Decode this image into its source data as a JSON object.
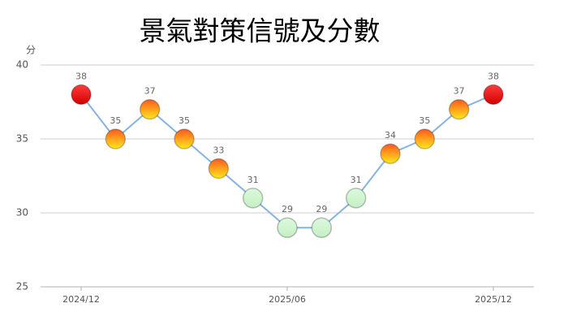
{
  "chart_data": {
    "type": "line",
    "title": "景氣對策信號及分數",
    "y_label": "分",
    "categories": [
      "2024/12",
      null,
      null,
      null,
      null,
      null,
      "2025/06",
      null,
      null,
      null,
      null,
      null,
      "2025/12"
    ],
    "values": [
      38,
      35,
      37,
      35,
      33,
      31,
      29,
      29,
      31,
      34,
      35,
      37,
      38
    ],
    "color": "#86b4e2",
    "marker_colors": [
      [
        "#ff3b3b",
        "#d40000"
      ],
      [
        "#ff5a1e",
        "#ffe81a"
      ],
      [
        "#ff5a1e",
        "#ffe81a"
      ],
      [
        "#ff5a1e",
        "#ffe81a"
      ],
      [
        "#ff5a1e",
        "#ffe81a"
      ],
      [
        "#dcfadc",
        "#c4efc4"
      ],
      [
        "#dcfadc",
        "#c4efc4"
      ],
      [
        "#dcfadc",
        "#c4efc4"
      ],
      [
        "#dcfadc",
        "#c4efc4"
      ],
      [
        "#ff5a1e",
        "#ffe81a"
      ],
      [
        "#ff5a1e",
        "#ffe81a"
      ],
      [
        "#ff5a1e",
        "#ffe81a"
      ],
      [
        "#ff3b3b",
        "#d40000"
      ]
    ],
    "ylim": [
      25,
      40
    ],
    "yticks": [
      25,
      30,
      35,
      40
    ],
    "grid": true
  }
}
